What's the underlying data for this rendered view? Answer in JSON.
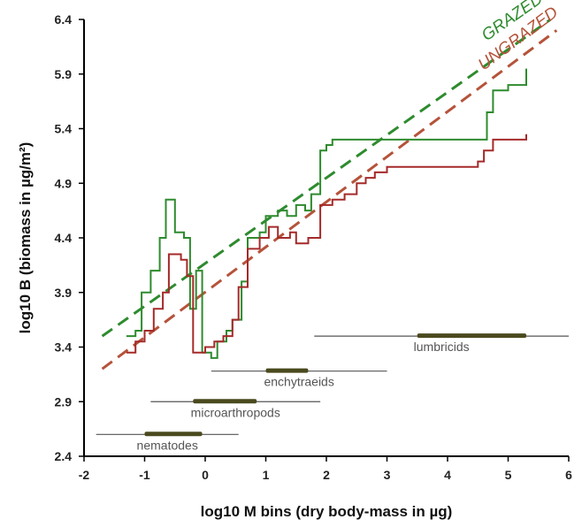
{
  "chart_data": {
    "type": "line",
    "title": "",
    "xlabel": "log10 M bins (dry body-mass in µg)",
    "ylabel": "log10 B (biomass in µg/m²)",
    "xlim": [
      -2,
      6
    ],
    "ylim": [
      2.4,
      6.4
    ],
    "xticks": [
      "-2",
      "-1",
      "0",
      "1",
      "2",
      "3",
      "4",
      "5",
      "6"
    ],
    "yticks": [
      "2.4",
      "2.9",
      "3.4",
      "3.9",
      "4.4",
      "4.9",
      "5.4",
      "5.9",
      "6.4"
    ],
    "colors": {
      "grazed": "#2e8b2e",
      "ungrazed": "#a52a2a",
      "ranges": "#555555",
      "range_bars": "#4a4a1e"
    },
    "series": [
      {
        "name": "GRAZED",
        "style": "step",
        "color": "#2e8b2e",
        "points": [
          [
            -1.3,
            3.5
          ],
          [
            -1.15,
            3.55
          ],
          [
            -1.05,
            3.9
          ],
          [
            -0.9,
            4.1
          ],
          [
            -0.75,
            4.4
          ],
          [
            -0.65,
            4.75
          ],
          [
            -0.5,
            4.45
          ],
          [
            -0.35,
            4.4
          ],
          [
            -0.25,
            3.75
          ],
          [
            -0.15,
            4.1
          ],
          [
            -0.05,
            3.35
          ],
          [
            0.1,
            3.3
          ],
          [
            0.2,
            3.45
          ],
          [
            0.35,
            3.55
          ],
          [
            0.45,
            3.65
          ],
          [
            0.6,
            4.0
          ],
          [
            0.7,
            4.4
          ],
          [
            0.9,
            4.45
          ],
          [
            1.0,
            4.6
          ],
          [
            1.2,
            4.65
          ],
          [
            1.35,
            4.6
          ],
          [
            1.5,
            4.7
          ],
          [
            1.65,
            4.65
          ],
          [
            1.75,
            4.8
          ],
          [
            1.9,
            5.2
          ],
          [
            2.0,
            5.25
          ],
          [
            2.1,
            5.3
          ],
          [
            4.5,
            5.3
          ],
          [
            4.65,
            5.55
          ],
          [
            4.75,
            5.75
          ],
          [
            5.0,
            5.8
          ],
          [
            5.3,
            5.95
          ]
        ]
      },
      {
        "name": "UNGRAZED",
        "style": "step",
        "color": "#a52a2a",
        "points": [
          [
            -1.3,
            3.35
          ],
          [
            -1.15,
            3.45
          ],
          [
            -1.0,
            3.55
          ],
          [
            -0.85,
            3.75
          ],
          [
            -0.7,
            3.9
          ],
          [
            -0.6,
            4.25
          ],
          [
            -0.4,
            4.2
          ],
          [
            -0.3,
            4.05
          ],
          [
            -0.2,
            3.35
          ],
          [
            0.0,
            3.4
          ],
          [
            0.15,
            3.45
          ],
          [
            0.3,
            3.5
          ],
          [
            0.45,
            3.65
          ],
          [
            0.55,
            3.95
          ],
          [
            0.7,
            4.3
          ],
          [
            0.9,
            4.4
          ],
          [
            1.05,
            4.5
          ],
          [
            1.2,
            4.4
          ],
          [
            1.4,
            4.45
          ],
          [
            1.5,
            4.35
          ],
          [
            1.7,
            4.4
          ],
          [
            1.9,
            4.7
          ],
          [
            2.1,
            4.75
          ],
          [
            2.3,
            4.8
          ],
          [
            2.5,
            4.9
          ],
          [
            2.65,
            4.95
          ],
          [
            2.8,
            5.0
          ],
          [
            3.0,
            5.05
          ],
          [
            4.5,
            5.1
          ],
          [
            4.6,
            5.2
          ],
          [
            4.75,
            5.3
          ],
          [
            5.3,
            5.35
          ]
        ]
      }
    ],
    "fit_lines": [
      {
        "name": "GRAZED",
        "color": "#2e8b2e",
        "x": [
          -1.7,
          5.7
        ],
        "y": [
          3.5,
          6.4
        ]
      },
      {
        "name": "UNGRAZED",
        "color": "#b5533a",
        "x": [
          -1.7,
          5.8
        ],
        "y": [
          3.2,
          6.3
        ]
      }
    ],
    "group_ranges": [
      {
        "name": "nematodes",
        "x_start": -1.8,
        "x_end": 0.55,
        "y": 2.6,
        "bar_start": -1.0,
        "bar_end": -0.05
      },
      {
        "name": "microarthropods",
        "x_start": -0.9,
        "x_end": 1.9,
        "y": 2.9,
        "bar_start": -0.2,
        "bar_end": 0.85
      },
      {
        "name": "enchytraeids",
        "x_start": 0.1,
        "x_end": 3.0,
        "y": 3.18,
        "bar_start": 1.0,
        "bar_end": 1.7
      },
      {
        "name": "lumbricids",
        "x_start": 1.8,
        "x_end": 6.0,
        "y": 3.5,
        "bar_start": 3.5,
        "bar_end": 5.3
      }
    ]
  }
}
